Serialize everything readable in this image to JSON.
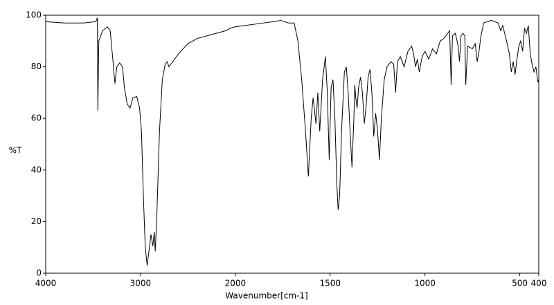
{
  "chart_data": {
    "type": "line",
    "xlabel": "Wavenumber[cm-1]",
    "ylabel": "%T",
    "xlim": [
      4000,
      400
    ],
    "ylim": [
      0,
      100
    ],
    "xticks": [
      4000,
      3000,
      2000,
      1500,
      1000,
      500,
      400
    ],
    "yticks": [
      0,
      20,
      40,
      60,
      80,
      100
    ],
    "x_break": 2000,
    "x_break_factor": 2,
    "grid": false,
    "series": [
      {
        "color": "#000000",
        "x": [
          4000,
          3800,
          3600,
          3470,
          3455,
          3450,
          3440,
          3400,
          3350,
          3320,
          3290,
          3270,
          3250,
          3220,
          3190,
          3170,
          3140,
          3110,
          3080,
          3040,
          3010,
          2990,
          2970,
          2950,
          2930,
          2910,
          2890,
          2870,
          2855,
          2845,
          2830,
          2800,
          2770,
          2740,
          2720,
          2700,
          2680,
          2600,
          2500,
          2400,
          2300,
          2200,
          2100,
          2050,
          2000,
          1950,
          1900,
          1800,
          1760,
          1720,
          1690,
          1670,
          1650,
          1630,
          1615,
          1600,
          1590,
          1575,
          1565,
          1555,
          1540,
          1525,
          1515,
          1505,
          1495,
          1485,
          1475,
          1465,
          1458,
          1450,
          1440,
          1425,
          1415,
          1405,
          1395,
          1385,
          1375,
          1370,
          1365,
          1358,
          1350,
          1340,
          1330,
          1320,
          1310,
          1300,
          1290,
          1280,
          1270,
          1260,
          1250,
          1240,
          1230,
          1215,
          1200,
          1180,
          1165,
          1155,
          1145,
          1130,
          1110,
          1090,
          1070,
          1060,
          1050,
          1040,
          1030,
          1015,
          1000,
          980,
          960,
          940,
          920,
          900,
          880,
          870,
          862,
          855,
          840,
          825,
          818,
          810,
          800,
          790,
          785,
          775,
          750,
          735,
          725,
          715,
          705,
          690,
          650,
          615,
          600,
          590,
          570,
          555,
          545,
          535,
          525,
          515,
          505,
          495,
          485,
          475,
          465,
          455,
          445,
          435,
          425,
          415,
          405,
          400
        ],
        "values": [
          97.5,
          97,
          97,
          97.5,
          99,
          63,
          90,
          94,
          95.5,
          94,
          82,
          73.5,
          80,
          81.5,
          80,
          72,
          65.5,
          64,
          68,
          68.5,
          64,
          55,
          30,
          10,
          3,
          9,
          15,
          10.5,
          16,
          8.5,
          20,
          55,
          75,
          81,
          82,
          80,
          81,
          85,
          89,
          91,
          92,
          93,
          94,
          95,
          95.5,
          96,
          96.5,
          97.5,
          98,
          97,
          97,
          90,
          75,
          55,
          37.5,
          60,
          68,
          58,
          70,
          55,
          75,
          84,
          70,
          44,
          72,
          75,
          60,
          35,
          24.5,
          30,
          55,
          78,
          80,
          70,
          55,
          41,
          60,
          73,
          68,
          64,
          72,
          76,
          70,
          58,
          65,
          76,
          79,
          70,
          53,
          62,
          55,
          44,
          60,
          75,
          80,
          82,
          81,
          70,
          82,
          84,
          80,
          86,
          88,
          85,
          80,
          83,
          78,
          84,
          86,
          83,
          87,
          85,
          90,
          91,
          93,
          94,
          73,
          92,
          93,
          88,
          82,
          92,
          93,
          92,
          73,
          88,
          87,
          89,
          82,
          86,
          92,
          97,
          98,
          97,
          94,
          96,
          90,
          85,
          78,
          82,
          77,
          83,
          88,
          90,
          86,
          95,
          93,
          96,
          85,
          81,
          78,
          80,
          74,
          75
        ]
      }
    ]
  }
}
